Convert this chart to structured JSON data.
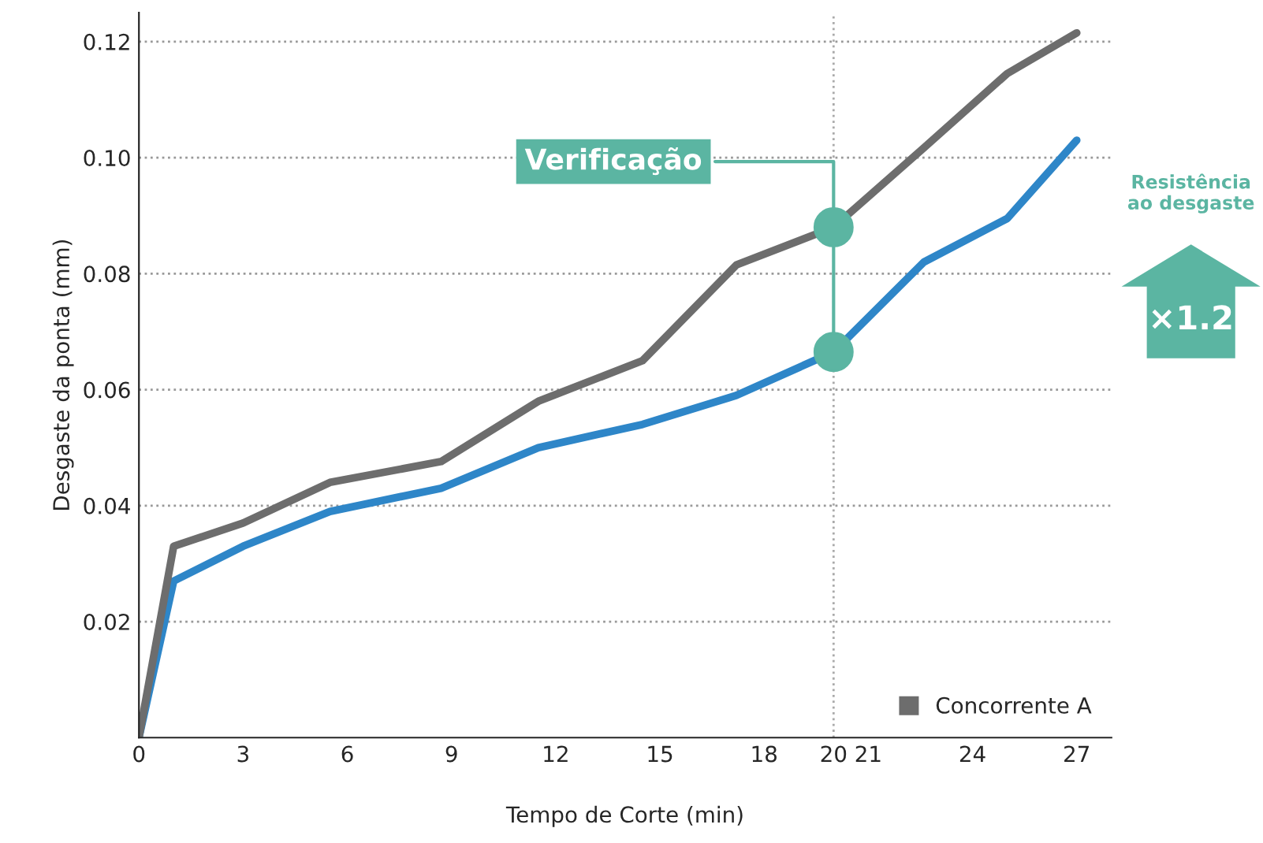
{
  "chart_data": {
    "type": "line",
    "xlabel": "Tempo de Corte (min)",
    "ylabel": "Desgaste da ponta (mm)",
    "x": [
      0,
      1,
      3,
      5.5,
      8.7,
      11.5,
      14.5,
      17.2,
      20,
      22.6,
      25,
      27
    ],
    "series": [
      {
        "color": "#2e86c8",
        "values": [
          0,
          0.027,
          0.033,
          0.039,
          0.043,
          0.05,
          0.054,
          0.059,
          0.0665,
          0.082,
          0.0895,
          0.103
        ]
      },
      {
        "name": "Concorrente A",
        "color": "#6d6d6d",
        "values": [
          0,
          0.033,
          0.037,
          0.044,
          0.0476,
          0.058,
          0.065,
          0.0815,
          0.088,
          0.1017,
          0.1145,
          0.1215
        ]
      }
    ],
    "xlim": [
      0,
      28
    ],
    "xticks": [
      0,
      3,
      6,
      9,
      12,
      15,
      18,
      20,
      21,
      24,
      27
    ],
    "ylim": [
      0,
      0.125
    ],
    "yticks": [
      0.02,
      0.04,
      0.06,
      0.08,
      {
        "value": 0.1,
        "label": "0.10"
      },
      0.12
    ],
    "grid": "y",
    "legend": "bottom right",
    "marker": "none",
    "line_style": "solid",
    "ref_lines": [
      {
        "axis": "x",
        "value": 20,
        "label": null,
        "color": "#aaaaaa",
        "line_style": "dotted"
      }
    ],
    "annotations": [
      {
        "text": "Verificação",
        "x": 20,
        "y": 0.088
      },
      "Resistência\nao desgaste",
      "×1.2"
    ]
  }
}
